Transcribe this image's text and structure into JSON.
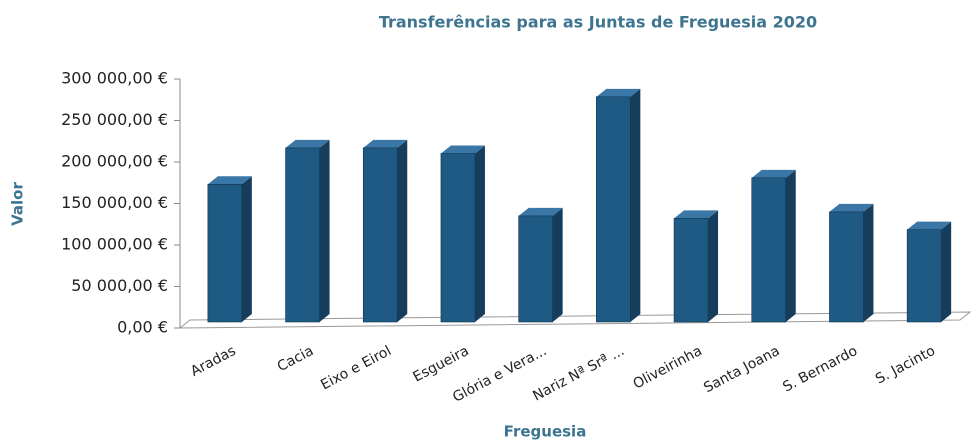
{
  "chart_data": {
    "type": "bar3d",
    "title": "Transferências para as Juntas de Freguesia 2020",
    "x_label": "Freguesia",
    "y_label": "Valor",
    "categories": [
      "Aradas",
      "Cacia",
      "Eixo e Eirol",
      "Esgueira",
      "Glória e Vera...",
      "Nariz Nª Srª ...",
      "Oliveirinha",
      "Santa Joana",
      "S. Bernardo",
      "S. Jacinto"
    ],
    "values": [
      170000,
      215000,
      215000,
      208000,
      131000,
      278000,
      128000,
      178000,
      136000,
      114000
    ],
    "color": "#1f5a85",
    "ylim": [
      0,
      300000
    ],
    "yticks": [
      {
        "value": 0,
        "label": "0,00 €"
      },
      {
        "value": 50000,
        "label": "50 000,00 €"
      },
      {
        "value": 100000,
        "label": "100 000,00 €"
      },
      {
        "value": 150000,
        "label": "150 000,00 €"
      },
      {
        "value": 200000,
        "label": "200 000,00 €"
      },
      {
        "value": 250000,
        "label": "250 000,00 €"
      },
      {
        "value": 300000,
        "label": "300 000,00 €"
      }
    ]
  }
}
